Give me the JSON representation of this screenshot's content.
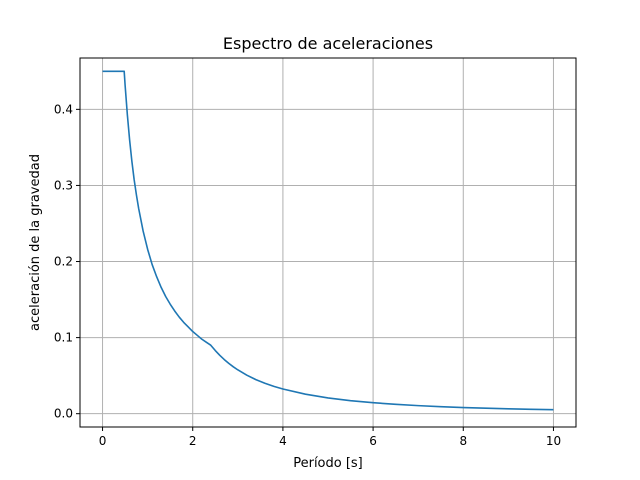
{
  "chart_data": {
    "type": "line",
    "title": "Espectro de aceleraciones",
    "xlabel": "Período [s]",
    "ylabel": "aceleración de la gravedad",
    "xlim": [
      -0.5,
      10.5
    ],
    "ylim": [
      -0.0175,
      0.4675
    ],
    "xticks": [
      0,
      2,
      4,
      6,
      8,
      10
    ],
    "xtick_labels": [
      "0",
      "2",
      "4",
      "6",
      "8",
      "10"
    ],
    "yticks": [
      0.0,
      0.1,
      0.2,
      0.3,
      0.4
    ],
    "ytick_labels": [
      "0.0",
      "0.1",
      "0.2",
      "0.3",
      "0.4"
    ],
    "grid": true,
    "series": [
      {
        "color": "#1f77b4",
        "x": [
          0,
          0.1,
          0.2,
          0.3,
          0.4,
          0.48,
          0.5,
          0.55,
          0.6,
          0.65,
          0.7,
          0.75,
          0.8,
          0.9,
          1.0,
          1.1,
          1.2,
          1.3,
          1.4,
          1.5,
          1.6,
          1.7,
          1.8,
          1.9,
          2.0,
          2.1,
          2.2,
          2.3,
          2.4,
          2.5,
          2.6,
          2.7,
          2.8,
          2.9,
          3.0,
          3.2,
          3.4,
          3.6,
          3.8,
          4.0,
          4.5,
          5.0,
          5.5,
          6.0,
          6.5,
          7.0,
          7.5,
          8.0,
          8.5,
          9.0,
          9.5,
          10.0
        ],
        "y": [
          0.45,
          0.45,
          0.45,
          0.45,
          0.45,
          0.45,
          0.432,
          0.393,
          0.36,
          0.332,
          0.308,
          0.288,
          0.27,
          0.24,
          0.216,
          0.196,
          0.18,
          0.166,
          0.154,
          0.144,
          0.135,
          0.127,
          0.12,
          0.114,
          0.108,
          0.103,
          0.098,
          0.094,
          0.09,
          0.083,
          0.0767,
          0.0711,
          0.0661,
          0.0616,
          0.0576,
          0.0506,
          0.0448,
          0.04,
          0.0359,
          0.0324,
          0.0256,
          0.0207,
          0.0171,
          0.0144,
          0.0123,
          0.0106,
          0.0092,
          0.0081,
          0.0072,
          0.0064,
          0.0057,
          0.0052
        ]
      }
    ]
  }
}
